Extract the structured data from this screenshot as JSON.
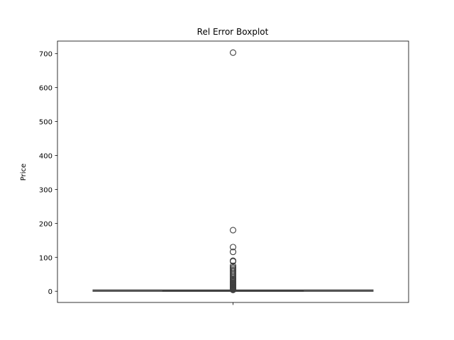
{
  "chart_data": {
    "type": "boxplot",
    "title": "Rel Error Boxplot",
    "xlabel": "",
    "ylabel": "Price",
    "ylim": [
      -33,
      737
    ],
    "yticks": [
      0,
      100,
      200,
      300,
      400,
      500,
      600,
      700
    ],
    "ytick_labels": [
      "0",
      "100",
      "200",
      "300",
      "400",
      "500",
      "600",
      "700"
    ],
    "grid": false,
    "legend": "none",
    "series": [
      {
        "box": {
          "whisker_low": 0,
          "q1": 0.3,
          "median": 0.8,
          "q3": 1.6,
          "whisker_high": 3.4
        },
        "outliers": [
          703,
          180,
          130,
          116,
          90,
          88,
          75,
          70,
          66,
          62,
          58,
          54,
          50,
          46,
          42,
          38,
          35,
          32,
          29,
          26,
          24,
          22,
          20,
          18,
          16,
          14,
          12,
          10,
          8,
          6,
          5,
          4
        ]
      }
    ],
    "colors": {
      "box_stroke": "#3f3f3f",
      "axis": "#000000"
    }
  }
}
